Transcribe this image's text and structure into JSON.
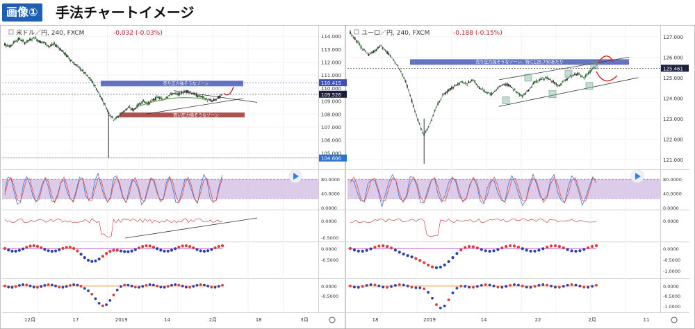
{
  "header": {
    "badge": "画像①",
    "title": "手法チャートイメージ"
  },
  "charts": [
    {
      "symbol_line": "米ドル／円, 240, FXCM",
      "change": "-0.032 (-0.03%)",
      "price_ticks": [
        "114.000",
        "113.000",
        "112.000",
        "111.000",
        "110.000",
        "109.000",
        "108.000",
        "107.000",
        "106.000",
        "105.000"
      ],
      "price_min": 104.0,
      "price_max": 114.6,
      "tags": [
        {
          "label": "110.415",
          "value": 110.415,
          "color": "#3f51b5"
        },
        {
          "label": "109.526",
          "value": 109.526,
          "color": "#1b1f3b"
        },
        {
          "label": "104.606",
          "value": 104.606,
          "color": "#2f6fcf"
        }
      ],
      "zone_sell": {
        "label": "売り圧力強そうなゾーン",
        "value": 110.3
      },
      "zone_buy": {
        "label": "買い圧力強そうなゾーン",
        "value": 107.9
      },
      "stoch_ticks": [
        "80.0000",
        "40.0000",
        "0.0000"
      ],
      "osc1_ticks": [
        "0.0000",
        "-0.5000"
      ],
      "osc2_ticks": [
        "0.0000",
        "-0.5000"
      ],
      "osc3_ticks": [
        "0.0000",
        "-0.5000"
      ],
      "x_labels": [
        "12月",
        "17",
        "2019",
        "14",
        "2月",
        "18",
        "3月"
      ]
    },
    {
      "symbol_line": "ユーロ／円, 240, FXCM",
      "change": "-0.188 (-0.15%)",
      "price_ticks": [
        "127.000",
        "126.000",
        "125.000",
        "124.000",
        "123.000",
        "122.000",
        "121.000"
      ],
      "price_min": 120.7,
      "price_max": 127.4,
      "tags": [
        {
          "label": "125.461",
          "value": 125.461,
          "color": "#1b1f3b"
        }
      ],
      "zone_sell": {
        "label": "売り圧力強そうなゾーン、特に125.730あたり",
        "value": 125.73
      },
      "stoch_ticks": [
        "80.0000",
        "40.0000",
        "0.0000"
      ],
      "osc1_ticks": [
        "0.0000"
      ],
      "osc2_ticks": [
        "0.0000",
        "-0.5000",
        "-1.0000"
      ],
      "osc3_ticks": [
        "0.0000",
        "-0.5000",
        "-1.0000"
      ],
      "x_labels": [
        "18",
        "2019",
        "14",
        "22",
        "2月",
        "11"
      ]
    }
  ],
  "chart_data": [
    {
      "type": "line",
      "title": "米ドル／円, 240, FXCM",
      "ylim": [
        104.0,
        114.6
      ],
      "series": [
        {
          "values": [
            113.4,
            113.2,
            113.6,
            113.8,
            113.5,
            113.7,
            113.9,
            113.6,
            113.5,
            113.2,
            113.4,
            113.1,
            112.7,
            112.3,
            111.9,
            111.6,
            111.2,
            110.8,
            110.3,
            109.6,
            108.9,
            108.1,
            107.6,
            107.8,
            108.2,
            108.5,
            108.3,
            108.7,
            109.0,
            108.8,
            109.1,
            109.3,
            109.1,
            109.4,
            109.6,
            109.5,
            109.7,
            109.8,
            109.6,
            109.4,
            109.3,
            109.1,
            109.0,
            109.2,
            109.5
          ]
        }
      ],
      "annotations": [
        "売り圧力強そうなゾーン",
        "買い圧力強そうなゾーン"
      ]
    },
    {
      "type": "line",
      "title": "ユーロ／円, 240, FXCM",
      "ylim": [
        120.7,
        127.4
      ],
      "series": [
        {
          "values": [
            127.2,
            126.8,
            126.4,
            126.1,
            126.3,
            126.6,
            126.2,
            125.9,
            125.4,
            124.8,
            123.9,
            122.9,
            122.2,
            122.8,
            123.6,
            124.1,
            124.4,
            124.6,
            124.8,
            124.7,
            124.9,
            124.5,
            124.3,
            124.2,
            124.5,
            124.7,
            124.6,
            124.3,
            124.1,
            124.4,
            124.8,
            124.9,
            125.0,
            124.8,
            124.6,
            124.9,
            125.1,
            125.2,
            125.0,
            125.3,
            125.6
          ]
        }
      ],
      "annotations": [
        "売り圧力強そうなゾーン、特に125.730あたり"
      ]
    }
  ]
}
